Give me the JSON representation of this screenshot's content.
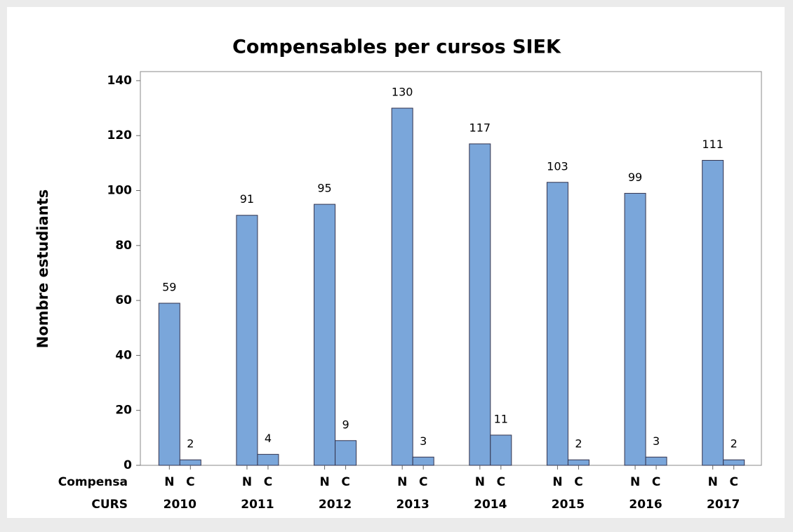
{
  "chart_data": {
    "type": "bar",
    "title": "Compensables per cursos SIEK",
    "ylabel": "Nombre estudiants",
    "inner_axis_label": "Compensa",
    "outer_axis_label": "CURS",
    "categories": [
      "2010",
      "2011",
      "2012",
      "2013",
      "2014",
      "2015",
      "2016",
      "2017"
    ],
    "series": [
      {
        "name": "N",
        "color": "#7aa6da",
        "values": [
          59,
          91,
          95,
          130,
          117,
          103,
          99,
          111
        ]
      },
      {
        "name": "C",
        "color": "#7aa6da",
        "values": [
          2,
          4,
          9,
          3,
          11,
          2,
          3,
          2
        ]
      }
    ],
    "ylim": [
      0,
      143.3
    ],
    "yticks": [
      0,
      20,
      40,
      60,
      80,
      100,
      120,
      140
    ],
    "grid": false
  }
}
